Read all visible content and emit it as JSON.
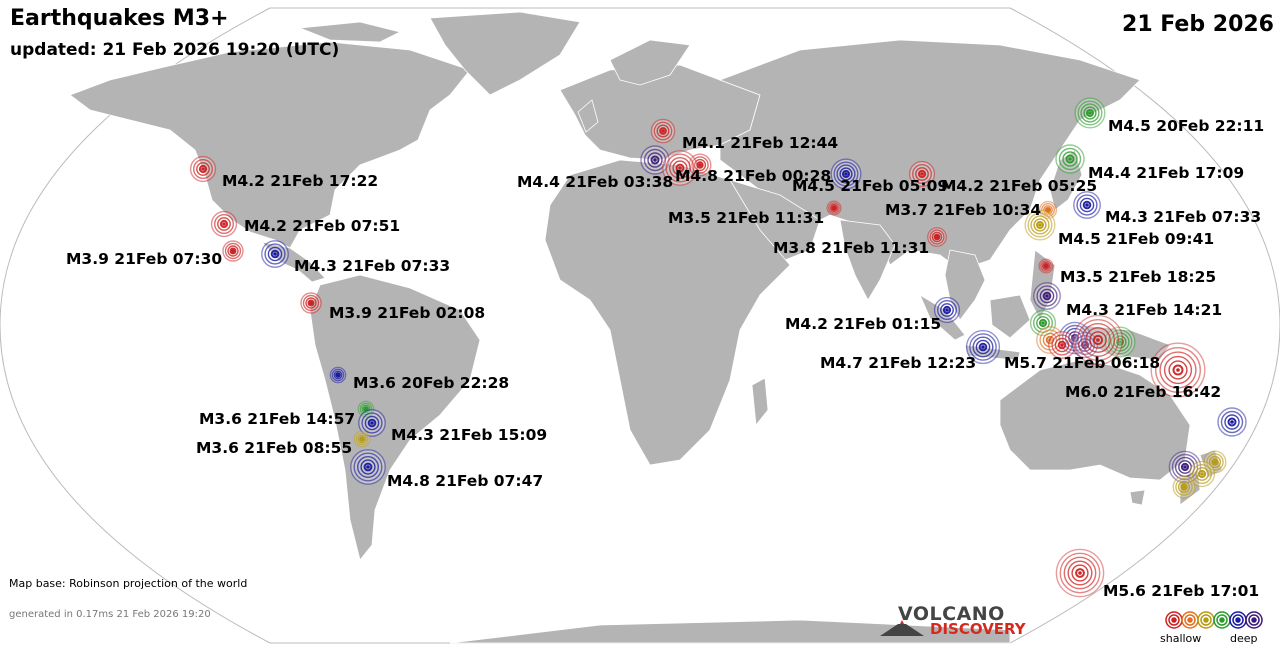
{
  "header": {
    "title": "Earthquakes M3+",
    "updated": "updated: 21 Feb 2026 19:20 (UTC)",
    "date": "21 Feb 2026"
  },
  "footer": {
    "map_base": "Map base: Robinson projection of the world",
    "generated": "generated in 0.17ms 21 Feb 2026 19:20"
  },
  "logo": {
    "line1": "VOLCANO",
    "line2": "DISCOVERY"
  },
  "legend": {
    "shallow_label": "shallow",
    "deep_label": "deep",
    "colors": [
      "#cc2222",
      "#e07020",
      "#b89a10",
      "#2a9a2a",
      "#1a1aa0",
      "#3a1a7a"
    ]
  },
  "colors": {
    "ocean": "#ffffff",
    "land": "#b4b4b4",
    "land_border": "#ffffff",
    "shallow": "#cc2222",
    "mid": "#e07020",
    "intermediate": "#b89a10",
    "medium_deep": "#2a9a2a",
    "deep": "#1a1aa0",
    "very_deep": "#3a1a7a"
  },
  "earthquakes": [
    {
      "label": "M4.2 21Feb 17:22",
      "mag": 4.2,
      "depth": "shallow"
    },
    {
      "label": "M4.2 21Feb 07:51",
      "mag": 4.2,
      "depth": "shallow"
    },
    {
      "label": "M3.9 21Feb 07:30",
      "mag": 3.9,
      "depth": "shallow"
    },
    {
      "label": "M4.3 21Feb 07:33",
      "mag": 4.3,
      "depth": "deep"
    },
    {
      "label": "M3.9 21Feb 02:08",
      "mag": 3.9,
      "depth": "shallow"
    },
    {
      "label": "M3.6 20Feb 22:28",
      "mag": 3.6,
      "depth": "deep"
    },
    {
      "label": "M3.6 21Feb 14:57",
      "mag": 3.6,
      "depth": "medium_deep"
    },
    {
      "label": "M4.3 21Feb 15:09",
      "mag": 4.3,
      "depth": "deep"
    },
    {
      "label": "M3.6 21Feb 08:55",
      "mag": 3.6,
      "depth": "intermediate"
    },
    {
      "label": "M4.8 21Feb 07:47",
      "mag": 4.8,
      "depth": "deep"
    },
    {
      "label": "M4.1 21Feb 12:44",
      "mag": 4.1,
      "depth": "shallow"
    },
    {
      "label": "M4.4 21Feb 03:38",
      "mag": 4.4,
      "depth": "very_deep"
    },
    {
      "label": "M4.8 21Feb 00:28",
      "mag": 4.8,
      "depth": "shallow"
    },
    {
      "label": "M4.5 21Feb 05:09",
      "mag": 4.5,
      "depth": "deep"
    },
    {
      "label": "M4.2 21Feb 05:25",
      "mag": 4.2,
      "depth": "shallow"
    },
    {
      "label": "M3.5 21Feb 11:31",
      "mag": 3.5,
      "depth": "shallow"
    },
    {
      "label": "M3.7 21Feb 10:34",
      "mag": 3.7,
      "depth": "mid"
    },
    {
      "label": "M3.8 21Feb 11:31",
      "mag": 3.8,
      "depth": "shallow"
    },
    {
      "label": "M4.5 20Feb 22:11",
      "mag": 4.5,
      "depth": "medium_deep"
    },
    {
      "label": "M4.4 21Feb 17:09",
      "mag": 4.4,
      "depth": "medium_deep"
    },
    {
      "label": "M4.3 21Feb 07:33",
      "mag": 4.3,
      "depth": "deep"
    },
    {
      "label": "M4.5 21Feb 09:41",
      "mag": 4.5,
      "depth": "intermediate"
    },
    {
      "label": "M3.5 21Feb 18:25",
      "mag": 3.5,
      "depth": "shallow"
    },
    {
      "label": "M4.3 21Feb 14:21",
      "mag": 4.3,
      "depth": "very_deep"
    },
    {
      "label": "M4.2 21Feb 01:15",
      "mag": 4.2,
      "depth": "deep"
    },
    {
      "label": "M4.7 21Feb 12:23",
      "mag": 4.7,
      "depth": "deep"
    },
    {
      "label": "M5.7 21Feb 06:18",
      "mag": 5.7,
      "depth": "shallow"
    },
    {
      "label": "M6.0 21Feb 16:42",
      "mag": 6.0,
      "depth": "shallow"
    },
    {
      "label": "M5.6 21Feb 17:01",
      "mag": 5.6,
      "depth": "shallow"
    }
  ],
  "unlabeled_quakes": [
    {
      "mag": 4.4,
      "depth": "deep"
    },
    {
      "mag": 4.6,
      "depth": "very_deep"
    },
    {
      "mag": 4.0,
      "depth": "intermediate"
    },
    {
      "mag": 4.2,
      "depth": "intermediate"
    },
    {
      "mag": 4.0,
      "depth": "intermediate"
    },
    {
      "mag": 4.5,
      "depth": "medium_deep"
    },
    {
      "mag": 4.6,
      "depth": "deep"
    },
    {
      "mag": 4.2,
      "depth": "medium_deep"
    },
    {
      "mag": 4.3,
      "depth": "mid"
    },
    {
      "mag": 4.3,
      "depth": "shallow"
    },
    {
      "mag": 4.2,
      "depth": "very_deep"
    },
    {
      "mag": 4.0,
      "depth": "shallow"
    }
  ]
}
